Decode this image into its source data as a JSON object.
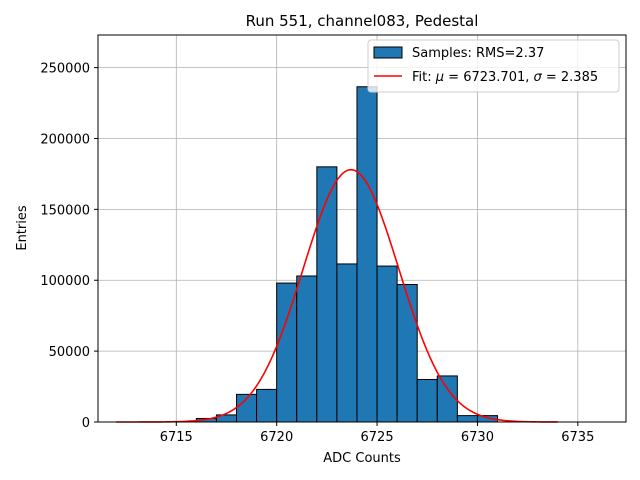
{
  "chart_data": {
    "type": "bar",
    "title": "Run 551, channel083, Pedestal",
    "xlabel": "ADC Counts",
    "ylabel": "Entries",
    "xlim": [
      6711.1,
      6737.4
    ],
    "ylim": [
      0,
      273000
    ],
    "grid": true,
    "legend_position": "top-right",
    "xticks": [
      6715,
      6720,
      6725,
      6730,
      6735
    ],
    "yticks": [
      0,
      50000,
      100000,
      150000,
      200000,
      250000
    ],
    "bin_width": 1,
    "histogram": {
      "name": "Samples: RMS=2.37",
      "bin_starts": [
        6716,
        6717,
        6718,
        6719,
        6720,
        6721,
        6722,
        6723,
        6724,
        6725,
        6726,
        6727,
        6728,
        6729,
        6730
      ],
      "values": [
        2500,
        5000,
        19500,
        23000,
        98000,
        103000,
        180000,
        111500,
        236500,
        110000,
        97000,
        30000,
        32500,
        4500,
        4500
      ]
    },
    "fit": {
      "name_prefix": "Fit: ",
      "name_mu": "μ",
      "name_mid": " = 6723.701, ",
      "name_sigma": "σ",
      "name_suffix": " = 2.385",
      "mu": 6723.701,
      "sigma": 2.385,
      "peak": 178000,
      "x_range": [
        6712,
        6734
      ]
    },
    "colors": {
      "bar_fill": "#1f77b4",
      "bar_edge": "#000000",
      "fit_line": "#ff0000",
      "grid": "#b0b0b0"
    }
  }
}
